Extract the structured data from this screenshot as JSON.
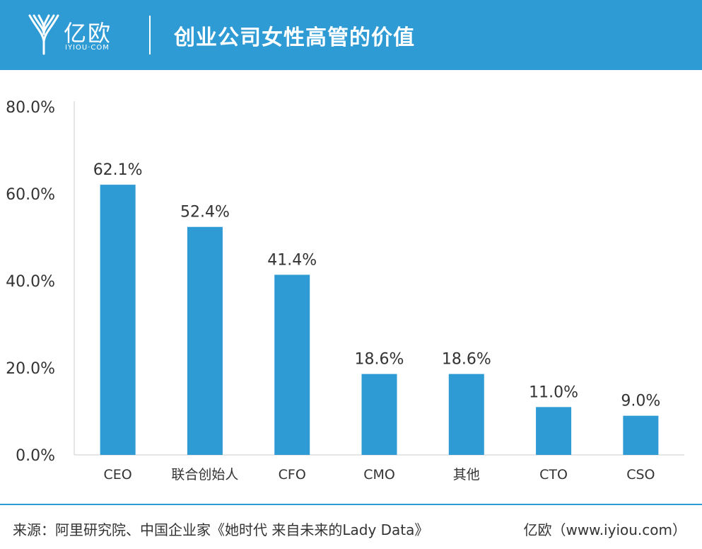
{
  "header": {
    "logo_text": "亿欧",
    "logo_sub": "IYIOU·COM",
    "title": "创业公司女性高管的价值"
  },
  "colors": {
    "header_bg": "#2e9bd5",
    "bar": "#2e9bd5"
  },
  "chart_data": {
    "type": "bar",
    "categories": [
      "CEO",
      "联合创始人",
      "CFO",
      "CMO",
      "其他",
      "CTO",
      "CSO"
    ],
    "values": [
      62.1,
      52.4,
      41.4,
      18.6,
      18.6,
      11.0,
      9.0
    ],
    "value_labels": [
      "62.1%",
      "52.4%",
      "41.4%",
      "18.6%",
      "18.6%",
      "11.0%",
      "9.0%"
    ],
    "y_ticks": [
      0,
      20,
      40,
      60,
      80
    ],
    "y_tick_labels": [
      "0.0%",
      "20.0%",
      "40.0%",
      "60.0%",
      "80.0%"
    ],
    "ylim": [
      0,
      80
    ],
    "grid": false,
    "legend": "none"
  },
  "footer": {
    "source": "来源：阿里研究院、中国企业家《她时代 来自未来的Lady Data》",
    "credit": "亿欧（www.iyiou.com）"
  }
}
